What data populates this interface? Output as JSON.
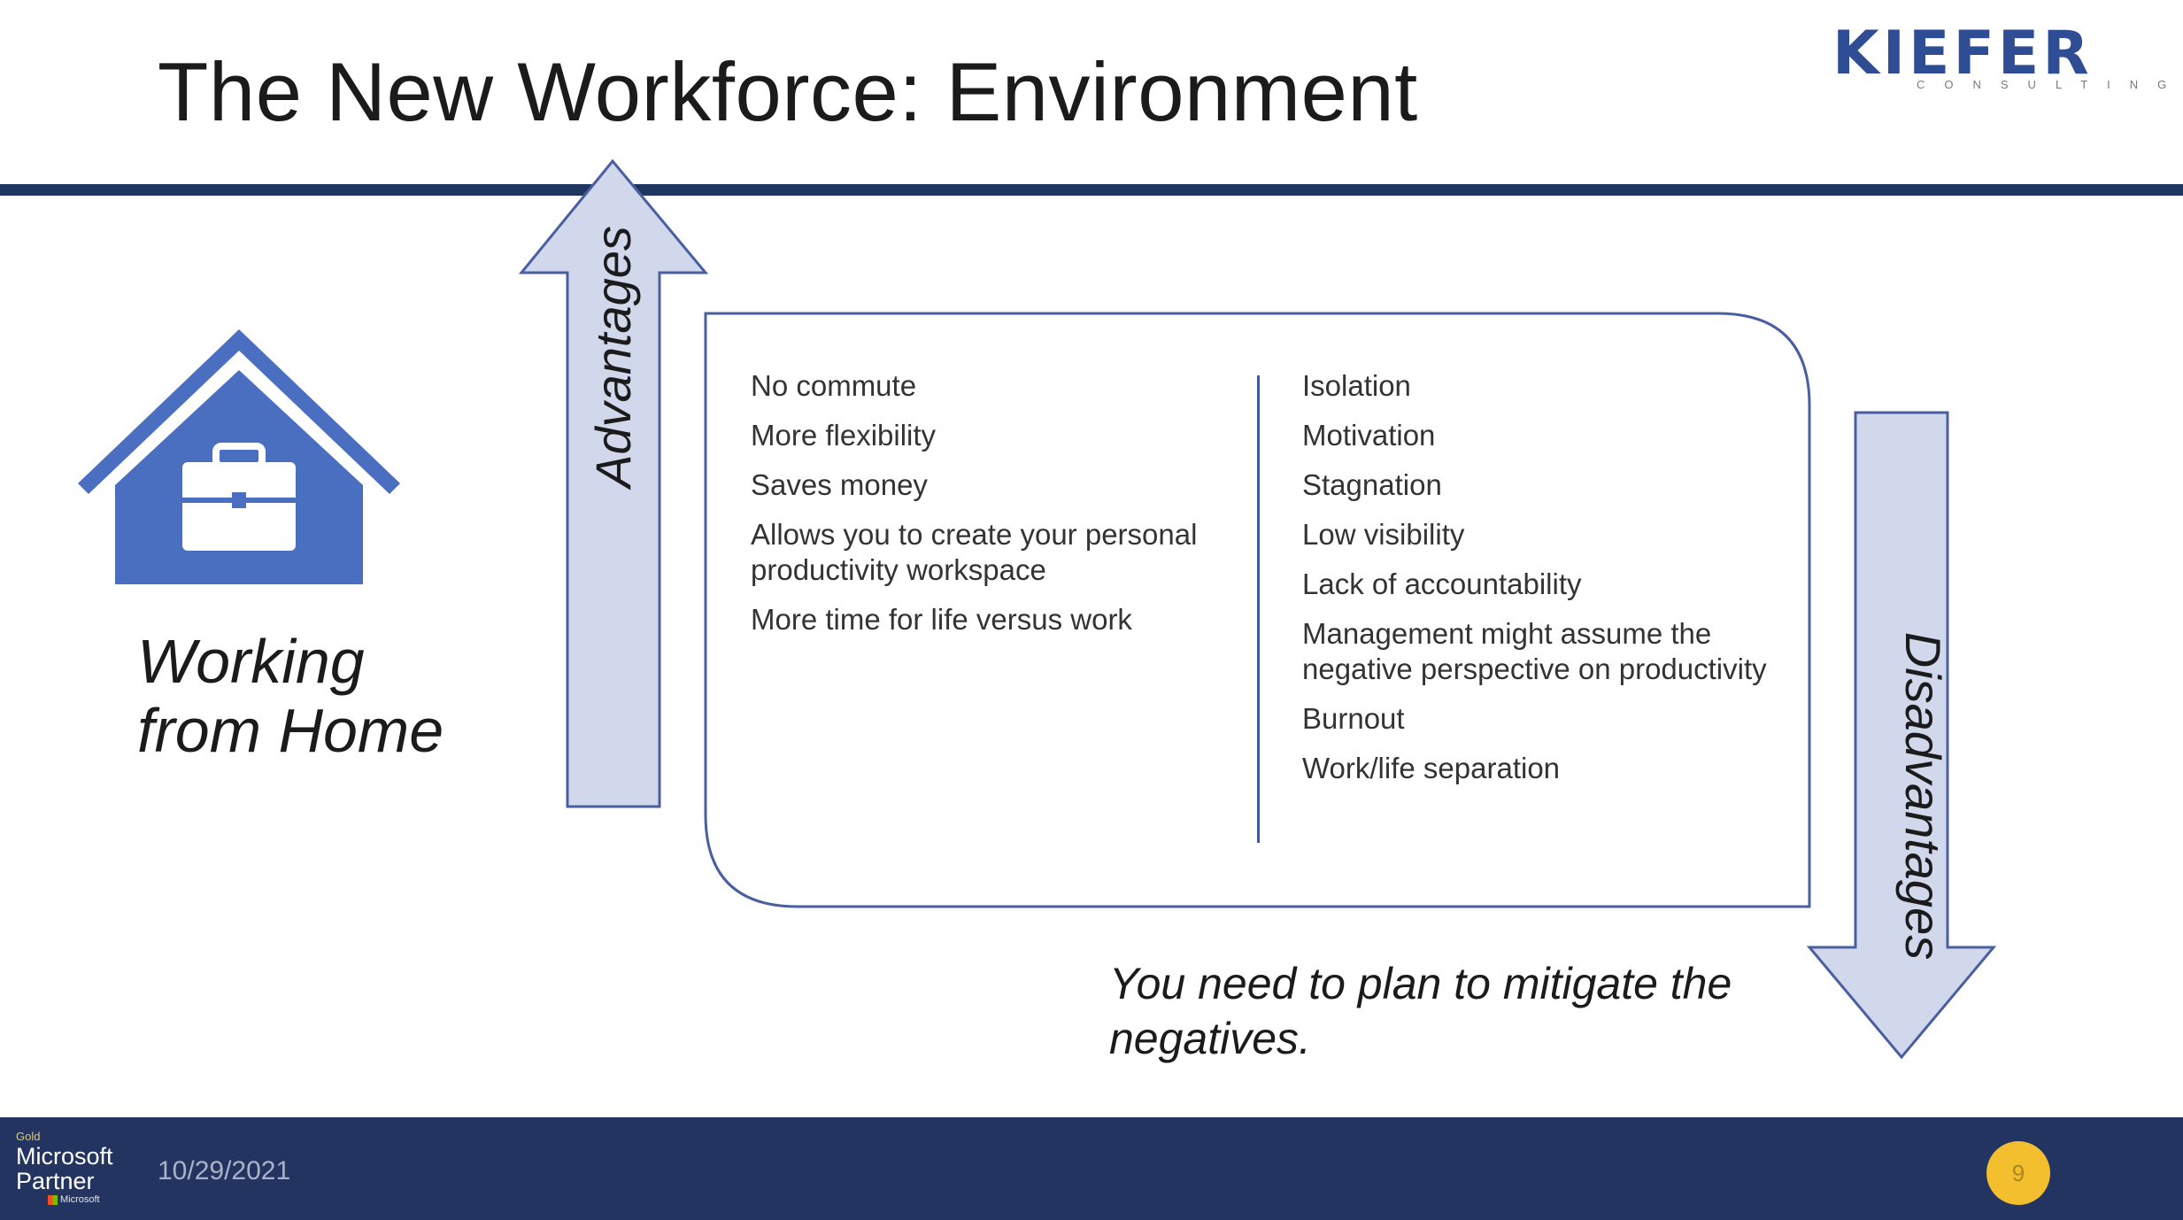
{
  "slide": {
    "title": "The New Workforce: Environment",
    "logo": {
      "word": "KIEFER",
      "sub": "CONSULTING"
    },
    "house_icon": "house-briefcase-icon",
    "wfh_line1": "Working",
    "wfh_line2": "from Home",
    "advantages_label": "Advantages",
    "disadvantages_label": "Disadvantages",
    "advantages": [
      "No commute",
      "More flexibility",
      "Saves money",
      "Allows you to create your personal productivity workspace",
      "More time for life versus work"
    ],
    "disadvantages": [
      "Isolation",
      "Motivation",
      "Stagnation",
      "Low visibility",
      "Lack of accountability",
      "Management might assume the negative perspective on productivity",
      "Burnout",
      "Work/life separation"
    ],
    "tagline_line1": "You need to plan to mitigate the",
    "tagline_line2": "negatives."
  },
  "footer": {
    "partner_tier": "Gold",
    "partner_line1": "Microsoft",
    "partner_line2": "Partner",
    "partner_brand": "Microsoft",
    "date": "10/29/2021",
    "page_number": "9"
  },
  "colors": {
    "accent_blue": "#4a6fc1",
    "navy_bar": "#1e3660",
    "footer_bg": "#233461",
    "arrow_fill": "#d2d8ec",
    "arrow_stroke": "#4a5fa0",
    "page_badge": "#f3bf2f"
  }
}
